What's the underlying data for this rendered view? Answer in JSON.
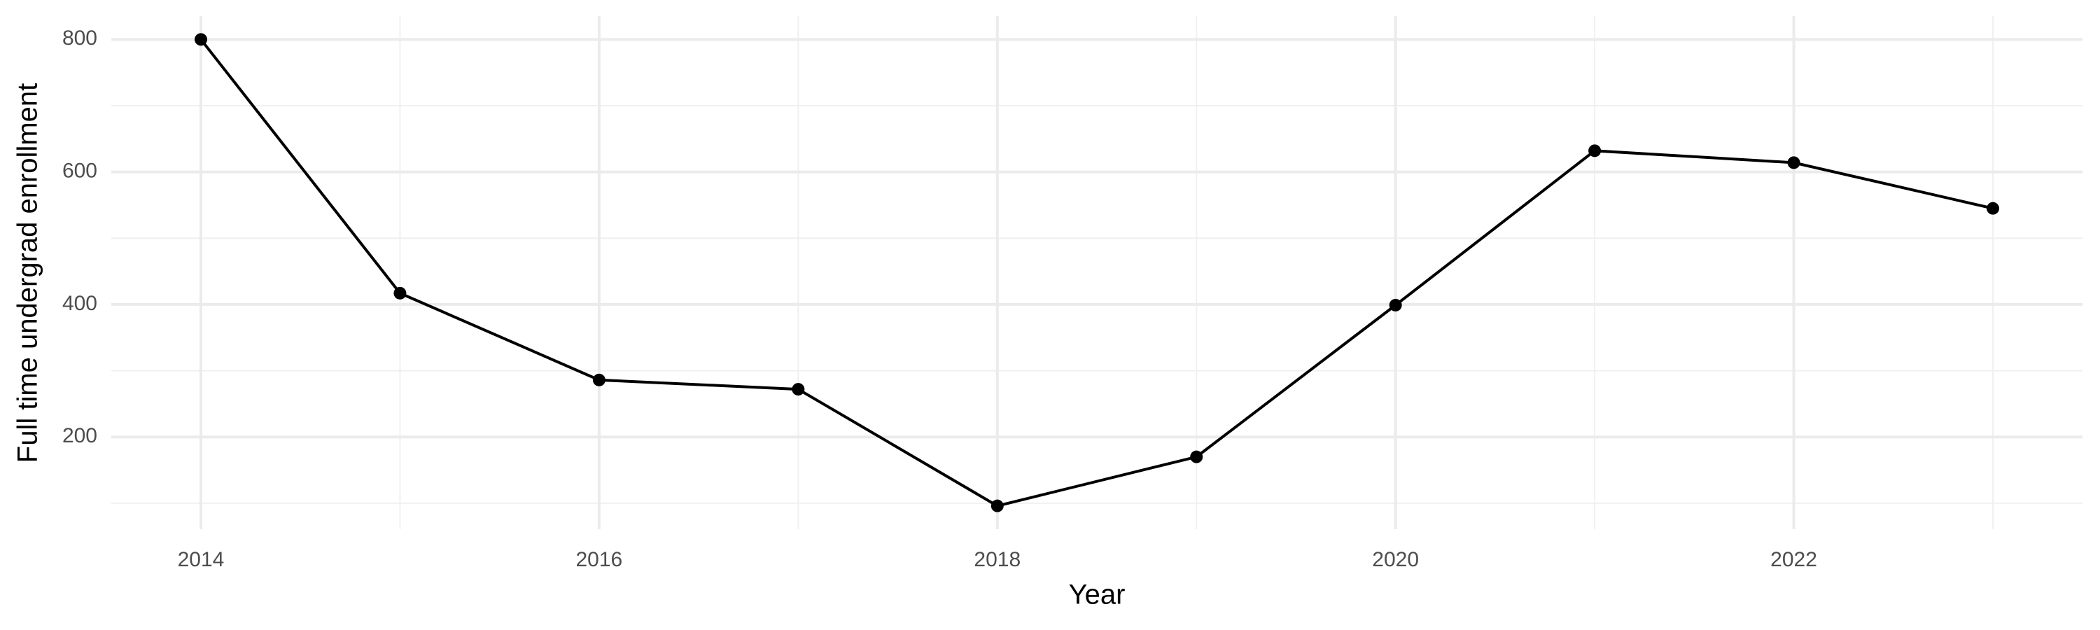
{
  "chart_data": {
    "type": "line",
    "x_label": "Year",
    "y_label": "Full time undergrad enrollment",
    "x": [
      2014,
      2015,
      2016,
      2017,
      2018,
      2019,
      2020,
      2021,
      2022,
      2023
    ],
    "series": [
      {
        "name": "Full time undergrad enrollment",
        "color": "#000000",
        "values": [
          800,
          417,
          286,
          272,
          96,
          170,
          399,
          632,
          614,
          545
        ]
      }
    ],
    "xlim": [
      2013.55,
      2023.45
    ],
    "xticks": [
      2014,
      2016,
      2018,
      2020,
      2022
    ],
    "xticks_minor": [
      2015,
      2017,
      2019,
      2021,
      2023
    ],
    "ylim": [
      60.8,
      835.2
    ],
    "yticks": [
      200,
      400,
      600,
      800
    ],
    "yticks_minor": [
      100,
      300,
      500,
      700
    ],
    "grid": true
  }
}
